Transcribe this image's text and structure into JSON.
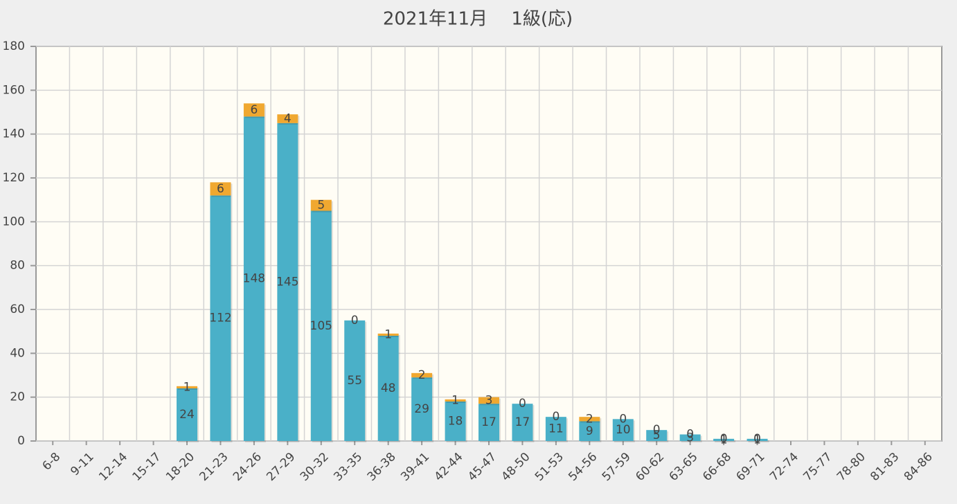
{
  "chart_data": {
    "type": "stacked-bar",
    "title": "2021年11月　 1級(応)",
    "categories": [
      "6-8",
      "9-11",
      "12-14",
      "15-17",
      "18-20",
      "21-23",
      "24-26",
      "27-29",
      "30-32",
      "33-35",
      "36-38",
      "39-41",
      "42-44",
      "45-47",
      "48-50",
      "51-53",
      "54-56",
      "57-59",
      "60-62",
      "63-65",
      "66-68",
      "69-71",
      "72-74",
      "75-77",
      "78-80",
      "81-83",
      "84-86"
    ],
    "series": [
      {
        "color": "#4ab0c8",
        "values": [
          0,
          0,
          0,
          0,
          24,
          112,
          148,
          145,
          105,
          55,
          48,
          29,
          18,
          17,
          17,
          11,
          9,
          10,
          5,
          3,
          1,
          1,
          0,
          0,
          0,
          0,
          0
        ]
      },
      {
        "color": "#f0a830",
        "values": [
          0,
          0,
          0,
          0,
          1,
          6,
          6,
          4,
          5,
          0,
          1,
          2,
          1,
          3,
          0,
          0,
          2,
          0,
          0,
          0,
          0,
          0,
          0,
          0,
          0,
          0,
          0
        ]
      }
    ],
    "ylim": [
      0,
      180
    ],
    "yticks": [
      0,
      20,
      40,
      60,
      80,
      100,
      120,
      140,
      160,
      180
    ],
    "grid": true
  }
}
